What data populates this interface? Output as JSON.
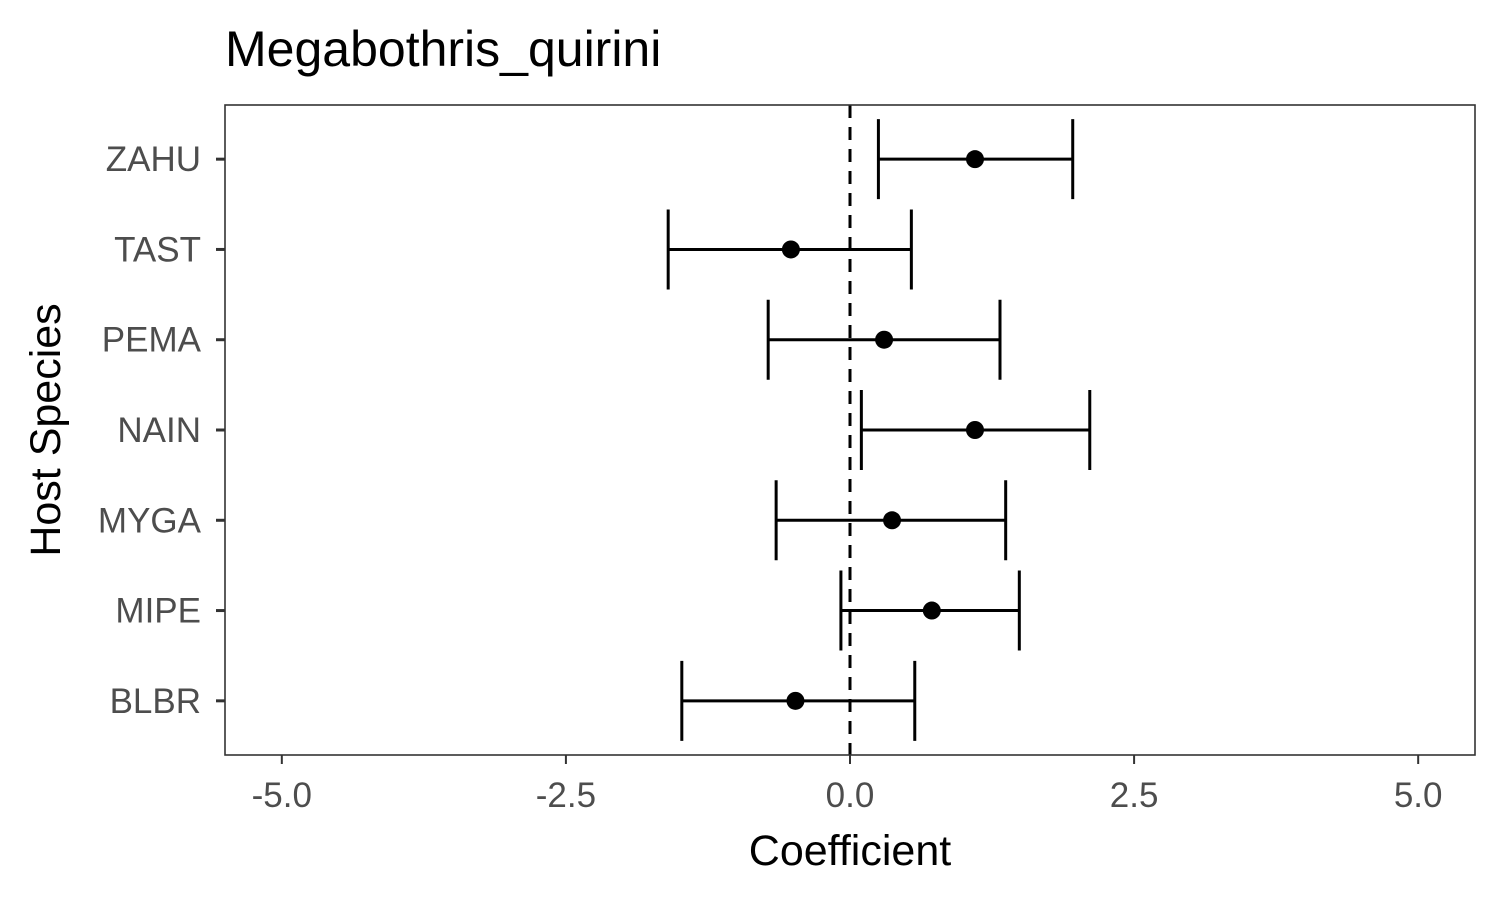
{
  "chart_data": {
    "type": "scatter",
    "subtype": "coefficient-errorbar",
    "title": "Megabothris_quirini",
    "xlabel": "Coefficient",
    "ylabel": "Host Species",
    "xlim": [
      -5.5,
      5.5
    ],
    "x_ticks": [
      -5.0,
      -2.5,
      0.0,
      2.5,
      5.0
    ],
    "x_tick_labels": [
      "-5.0",
      "-2.5",
      "0.0",
      "2.5",
      "5.0"
    ],
    "reference_line": {
      "x": 0,
      "style": "dashed"
    },
    "grid": false,
    "categories": [
      "BLBR",
      "MIPE",
      "MYGA",
      "NAIN",
      "PEMA",
      "TAST",
      "ZAHU"
    ],
    "estimates": [
      -0.48,
      0.72,
      0.37,
      1.1,
      0.3,
      -0.52,
      1.1
    ],
    "lower": [
      -1.48,
      -0.08,
      -0.65,
      0.1,
      -0.72,
      -1.6,
      0.25
    ],
    "upper": [
      0.57,
      1.49,
      1.37,
      2.11,
      1.32,
      0.54,
      1.96
    ],
    "colors": {
      "mark": "#000000",
      "panel_border": "#333333",
      "tick_text": "#4d4d4d"
    }
  }
}
